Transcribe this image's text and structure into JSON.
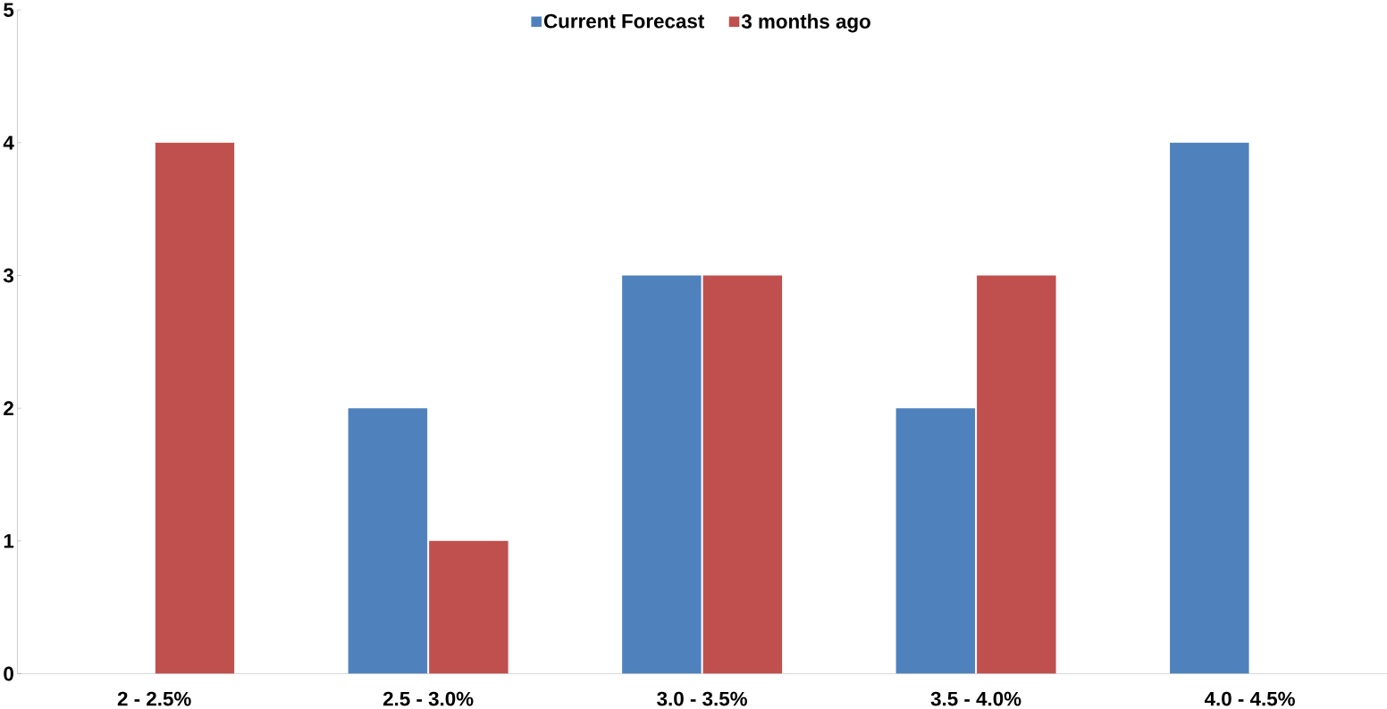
{
  "chart_data": {
    "type": "bar",
    "categories": [
      "2 - 2.5%",
      "2.5 - 3.0%",
      "3.0 - 3.5%",
      "3.5 - 4.0%",
      "4.0 - 4.5%"
    ],
    "series": [
      {
        "name": "Current Forecast",
        "color": "#4f81bd",
        "values": [
          0,
          2,
          3,
          2,
          4
        ]
      },
      {
        "name": "3 months ago",
        "color": "#c0504d",
        "values": [
          4,
          1,
          3,
          3,
          0
        ]
      }
    ],
    "ylim": [
      0,
      5
    ],
    "yticks": [
      0,
      1,
      2,
      3,
      4,
      5
    ],
    "legend": "top"
  }
}
